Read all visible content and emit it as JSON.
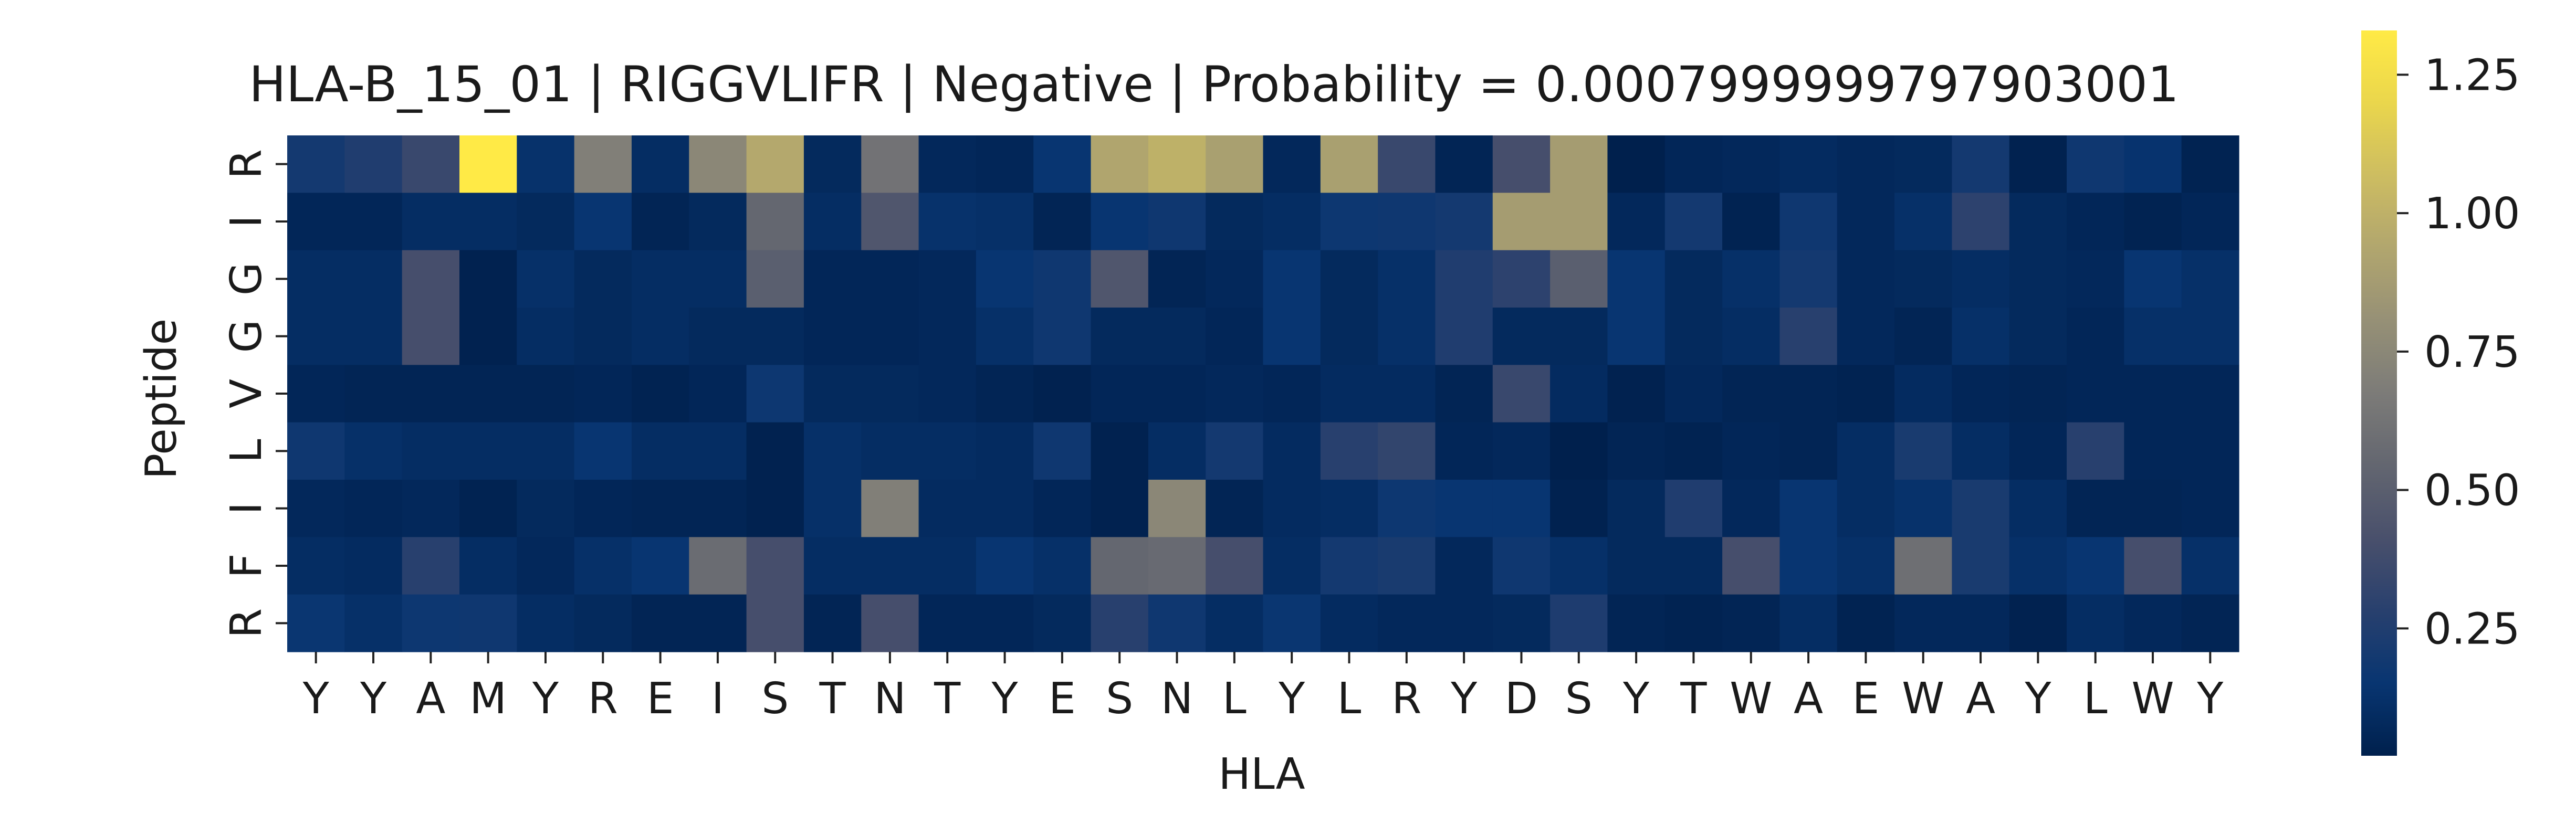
{
  "chart_data": {
    "type": "heatmap",
    "title": "HLA-B_15_01 | RIGGVLIFR | Negative | Probability = 0.0007999999797903001",
    "xlabel": "HLA",
    "ylabel": "Peptide",
    "x": [
      "Y",
      "Y",
      "A",
      "M",
      "Y",
      "R",
      "E",
      "I",
      "S",
      "T",
      "N",
      "T",
      "Y",
      "E",
      "S",
      "N",
      "L",
      "Y",
      "L",
      "R",
      "Y",
      "D",
      "S",
      "Y",
      "T",
      "W",
      "A",
      "E",
      "W",
      "A",
      "Y",
      "L",
      "W",
      "Y"
    ],
    "y": [
      "R",
      "I",
      "G",
      "G",
      "V",
      "L",
      "I",
      "F",
      "R"
    ],
    "colorbar": {
      "ticks": [
        0.25,
        0.5,
        0.75,
        1.0,
        1.25
      ],
      "tick_labels": [
        "0.25",
        "0.50",
        "0.75",
        "1.00",
        "1.25"
      ],
      "range": [
        0.02,
        1.33
      ],
      "colormap": "cividis"
    },
    "values": [
      [
        0.2,
        0.25,
        0.35,
        1.33,
        0.13,
        0.7,
        0.1,
        0.75,
        0.95,
        0.08,
        0.62,
        0.07,
        0.06,
        0.15,
        0.93,
        1.0,
        0.9,
        0.07,
        0.9,
        0.35,
        0.05,
        0.4,
        0.88,
        0.02,
        0.06,
        0.07,
        0.09,
        0.07,
        0.08,
        0.2,
        0.03,
        0.18,
        0.14,
        0.04
      ],
      [
        0.06,
        0.06,
        0.1,
        0.1,
        0.08,
        0.15,
        0.05,
        0.08,
        0.55,
        0.1,
        0.45,
        0.13,
        0.12,
        0.05,
        0.15,
        0.18,
        0.08,
        0.1,
        0.17,
        0.18,
        0.2,
        0.88,
        0.88,
        0.07,
        0.2,
        0.04,
        0.18,
        0.07,
        0.12,
        0.3,
        0.08,
        0.06,
        0.04,
        0.06
      ],
      [
        0.1,
        0.1,
        0.4,
        0.03,
        0.12,
        0.08,
        0.1,
        0.1,
        0.5,
        0.06,
        0.06,
        0.07,
        0.15,
        0.18,
        0.45,
        0.05,
        0.07,
        0.15,
        0.08,
        0.12,
        0.25,
        0.3,
        0.5,
        0.15,
        0.08,
        0.12,
        0.2,
        0.07,
        0.08,
        0.1,
        0.08,
        0.07,
        0.15,
        0.12
      ],
      [
        0.1,
        0.1,
        0.4,
        0.03,
        0.1,
        0.08,
        0.1,
        0.08,
        0.08,
        0.06,
        0.06,
        0.07,
        0.12,
        0.18,
        0.08,
        0.08,
        0.06,
        0.15,
        0.08,
        0.12,
        0.25,
        0.08,
        0.08,
        0.15,
        0.08,
        0.1,
        0.28,
        0.07,
        0.05,
        0.12,
        0.08,
        0.06,
        0.12,
        0.12
      ],
      [
        0.06,
        0.05,
        0.05,
        0.05,
        0.05,
        0.06,
        0.04,
        0.06,
        0.17,
        0.08,
        0.08,
        0.07,
        0.05,
        0.03,
        0.06,
        0.06,
        0.07,
        0.06,
        0.09,
        0.09,
        0.05,
        0.35,
        0.09,
        0.03,
        0.07,
        0.05,
        0.05,
        0.04,
        0.09,
        0.06,
        0.05,
        0.06,
        0.06,
        0.06
      ],
      [
        0.18,
        0.12,
        0.1,
        0.1,
        0.1,
        0.15,
        0.1,
        0.1,
        0.03,
        0.12,
        0.1,
        0.1,
        0.09,
        0.18,
        0.03,
        0.1,
        0.2,
        0.09,
        0.28,
        0.32,
        0.06,
        0.07,
        0.02,
        0.05,
        0.04,
        0.06,
        0.05,
        0.1,
        0.22,
        0.1,
        0.06,
        0.28,
        0.06,
        0.06
      ],
      [
        0.07,
        0.06,
        0.07,
        0.04,
        0.08,
        0.06,
        0.05,
        0.05,
        0.03,
        0.12,
        0.7,
        0.09,
        0.09,
        0.06,
        0.03,
        0.75,
        0.05,
        0.09,
        0.1,
        0.17,
        0.15,
        0.15,
        0.03,
        0.08,
        0.25,
        0.07,
        0.15,
        0.1,
        0.13,
        0.22,
        0.1,
        0.05,
        0.05,
        0.06
      ],
      [
        0.1,
        0.09,
        0.28,
        0.1,
        0.07,
        0.12,
        0.15,
        0.58,
        0.4,
        0.1,
        0.1,
        0.1,
        0.15,
        0.12,
        0.55,
        0.57,
        0.4,
        0.1,
        0.2,
        0.22,
        0.07,
        0.18,
        0.12,
        0.08,
        0.08,
        0.4,
        0.15,
        0.12,
        0.6,
        0.22,
        0.12,
        0.15,
        0.4,
        0.12
      ],
      [
        0.16,
        0.12,
        0.17,
        0.18,
        0.1,
        0.08,
        0.05,
        0.05,
        0.4,
        0.05,
        0.4,
        0.06,
        0.06,
        0.08,
        0.28,
        0.18,
        0.1,
        0.16,
        0.09,
        0.07,
        0.07,
        0.08,
        0.24,
        0.05,
        0.04,
        0.05,
        0.1,
        0.04,
        0.07,
        0.07,
        0.03,
        0.1,
        0.07,
        0.05
      ]
    ]
  }
}
